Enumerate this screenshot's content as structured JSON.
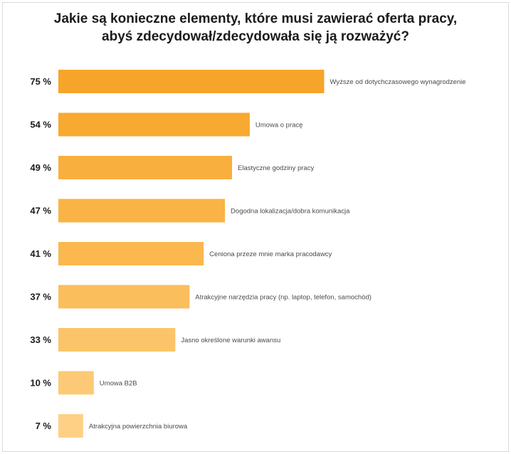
{
  "chart_data": {
    "type": "bar",
    "orientation": "horizontal",
    "title_lines": [
      "Jakie są konieczne elementy, które musi zawierać oferta pracy,",
      "abyś zdecydował/zdecydowała się ją rozważyć?"
    ],
    "categories": [
      "Wyższe od dotychczasowego wynagrodzenie",
      "Umowa o pracę",
      "Elastyczne godziny pracy",
      "Dogodna lokalizacja/dobra komunikacja",
      "Ceniona przeze mnie marka pracodawcy",
      "Atrakcyjne narzędzia pracy (np. laptop, telefon, samochód)",
      "Jasno określone warunki awansu",
      "Umowa B2B",
      "Atrakcyjna powierzchnia biurowa"
    ],
    "values": [
      75,
      54,
      49,
      47,
      41,
      37,
      33,
      10,
      7
    ],
    "value_labels": [
      "75 %",
      "54 %",
      "49 %",
      "47 %",
      "41 %",
      "37 %",
      "33 %",
      "10 %",
      "7 %"
    ],
    "colors": [
      "#f7a42a",
      "#f8a930",
      "#f9af3d",
      "#f9b445",
      "#fab84f",
      "#fbbe5c",
      "#fbc468",
      "#fcca76",
      "#fdd085"
    ],
    "xlim": [
      0,
      100
    ],
    "grid": false,
    "legend": "none"
  }
}
